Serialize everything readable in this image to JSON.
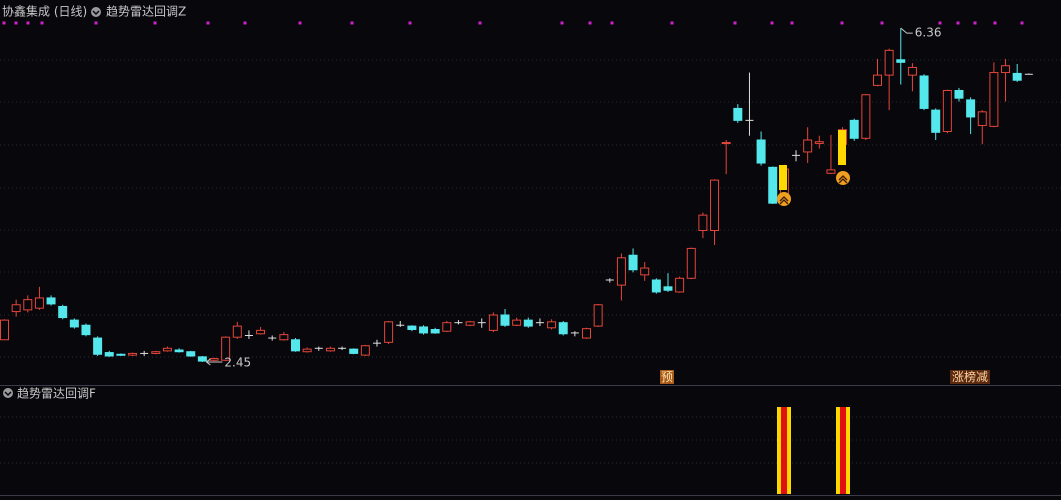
{
  "chart_data": {
    "type": "candlestick",
    "title": "协鑫集成 (日线)",
    "indicator_top": "趋势雷达回调Z",
    "indicator_bottom": "趋势雷达回调F",
    "max_label": 6.36,
    "min_label": 2.45,
    "marker_pre": "预",
    "marker_rank": "涨榜减",
    "up_color": "#e5463a",
    "down_color": "#54e8ec",
    "flat_color": "#e0e0e0",
    "ylim": [
      2.18,
      6.69
    ],
    "open": [
      2.71,
      3.04,
      3.06,
      3.08,
      3.2,
      3.1,
      2.94,
      2.88,
      2.73,
      2.56,
      2.54,
      2.53,
      2.55,
      2.55,
      2.58,
      2.59,
      2.57,
      2.51,
      2.47,
      2.47,
      2.74,
      2.76,
      2.78,
      2.73,
      2.71,
      2.71,
      2.57,
      2.61,
      2.58,
      2.61,
      2.6,
      2.53,
      2.67,
      2.68,
      2.88,
      2.87,
      2.86,
      2.83,
      2.81,
      2.91,
      2.88,
      2.91,
      2.82,
      3.0,
      2.88,
      2.94,
      2.91,
      2.85,
      2.91,
      2.79,
      2.73,
      2.87,
      3.41,
      3.35,
      3.7,
      3.47,
      3.41,
      3.33,
      3.27,
      3.43,
      3.99,
      3.99,
      5.01,
      5.42,
      5.28,
      5.05,
      4.73,
      4.37,
      4.87,
      4.91,
      5.01,
      4.66,
      5.0,
      5.28,
      5.07,
      5.69,
      5.81,
      5.99,
      5.81,
      5.8,
      5.4,
      5.15,
      5.63,
      5.52,
      5.22,
      5.21,
      5.84,
      5.83,
      5.82
    ],
    "high": [
      2.95,
      3.18,
      3.23,
      3.33,
      3.23,
      3.12,
      2.96,
      2.9,
      2.75,
      2.58,
      2.55,
      2.56,
      2.58,
      2.58,
      2.63,
      2.61,
      2.58,
      2.52,
      2.5,
      2.75,
      2.92,
      2.82,
      2.86,
      2.76,
      2.8,
      2.73,
      2.62,
      2.63,
      2.63,
      2.63,
      2.61,
      2.65,
      2.71,
      2.93,
      2.93,
      2.88,
      2.88,
      2.85,
      2.93,
      2.94,
      2.93,
      2.96,
      3.03,
      3.07,
      2.97,
      2.97,
      2.96,
      2.95,
      2.93,
      2.81,
      2.85,
      3.13,
      3.43,
      3.72,
      3.78,
      3.62,
      3.43,
      3.49,
      3.45,
      3.79,
      4.2,
      4.59,
      5.05,
      5.47,
      5.84,
      5.15,
      4.74,
      4.76,
      4.93,
      5.2,
      5.1,
      5.11,
      5.2,
      5.3,
      5.59,
      6.0,
      6.12,
      6.36,
      5.95,
      5.82,
      5.42,
      5.64,
      5.66,
      5.55,
      5.4,
      5.96,
      6.0,
      5.94,
      5.83
    ],
    "low": [
      2.71,
      2.98,
      3.03,
      3.06,
      3.11,
      2.95,
      2.84,
      2.75,
      2.52,
      2.51,
      2.52,
      2.52,
      2.52,
      2.54,
      2.57,
      2.56,
      2.51,
      2.45,
      2.46,
      2.46,
      2.72,
      2.72,
      2.77,
      2.7,
      2.7,
      2.57,
      2.56,
      2.58,
      2.57,
      2.59,
      2.54,
      2.52,
      2.63,
      2.66,
      2.86,
      2.81,
      2.77,
      2.78,
      2.8,
      2.89,
      2.87,
      2.85,
      2.8,
      2.86,
      2.87,
      2.85,
      2.87,
      2.83,
      2.76,
      2.75,
      2.72,
      2.86,
      3.38,
      3.17,
      3.5,
      3.4,
      3.25,
      3.27,
      3.26,
      3.42,
      3.9,
      3.82,
      4.65,
      5.25,
      5.1,
      4.75,
      4.3,
      4.36,
      4.8,
      4.78,
      4.95,
      4.65,
      4.98,
      5.04,
      5.05,
      5.68,
      5.4,
      5.7,
      5.62,
      5.4,
      5.05,
      5.13,
      5.5,
      5.12,
      5.0,
      5.2,
      5.5,
      5.73,
      5.82
    ],
    "close": [
      2.94,
      3.12,
      3.18,
      3.2,
      3.13,
      2.97,
      2.86,
      2.77,
      2.54,
      2.52,
      2.53,
      2.55,
      2.55,
      2.57,
      2.61,
      2.57,
      2.52,
      2.46,
      2.49,
      2.74,
      2.87,
      2.76,
      2.82,
      2.73,
      2.77,
      2.58,
      2.6,
      2.61,
      2.61,
      2.61,
      2.55,
      2.64,
      2.67,
      2.92,
      2.88,
      2.83,
      2.79,
      2.79,
      2.91,
      2.91,
      2.92,
      2.91,
      3.0,
      2.88,
      2.94,
      2.87,
      2.91,
      2.92,
      2.78,
      2.79,
      2.84,
      3.12,
      3.41,
      3.67,
      3.53,
      3.55,
      3.27,
      3.29,
      3.43,
      3.78,
      4.17,
      4.58,
      5.02,
      5.28,
      5.28,
      4.78,
      4.31,
      4.71,
      4.87,
      5.05,
      5.03,
      4.7,
      5.17,
      5.07,
      5.58,
      5.81,
      6.1,
      5.96,
      5.9,
      5.42,
      5.14,
      5.63,
      5.54,
      5.32,
      5.38,
      5.84,
      5.92,
      5.75,
      5.82
    ]
  }
}
